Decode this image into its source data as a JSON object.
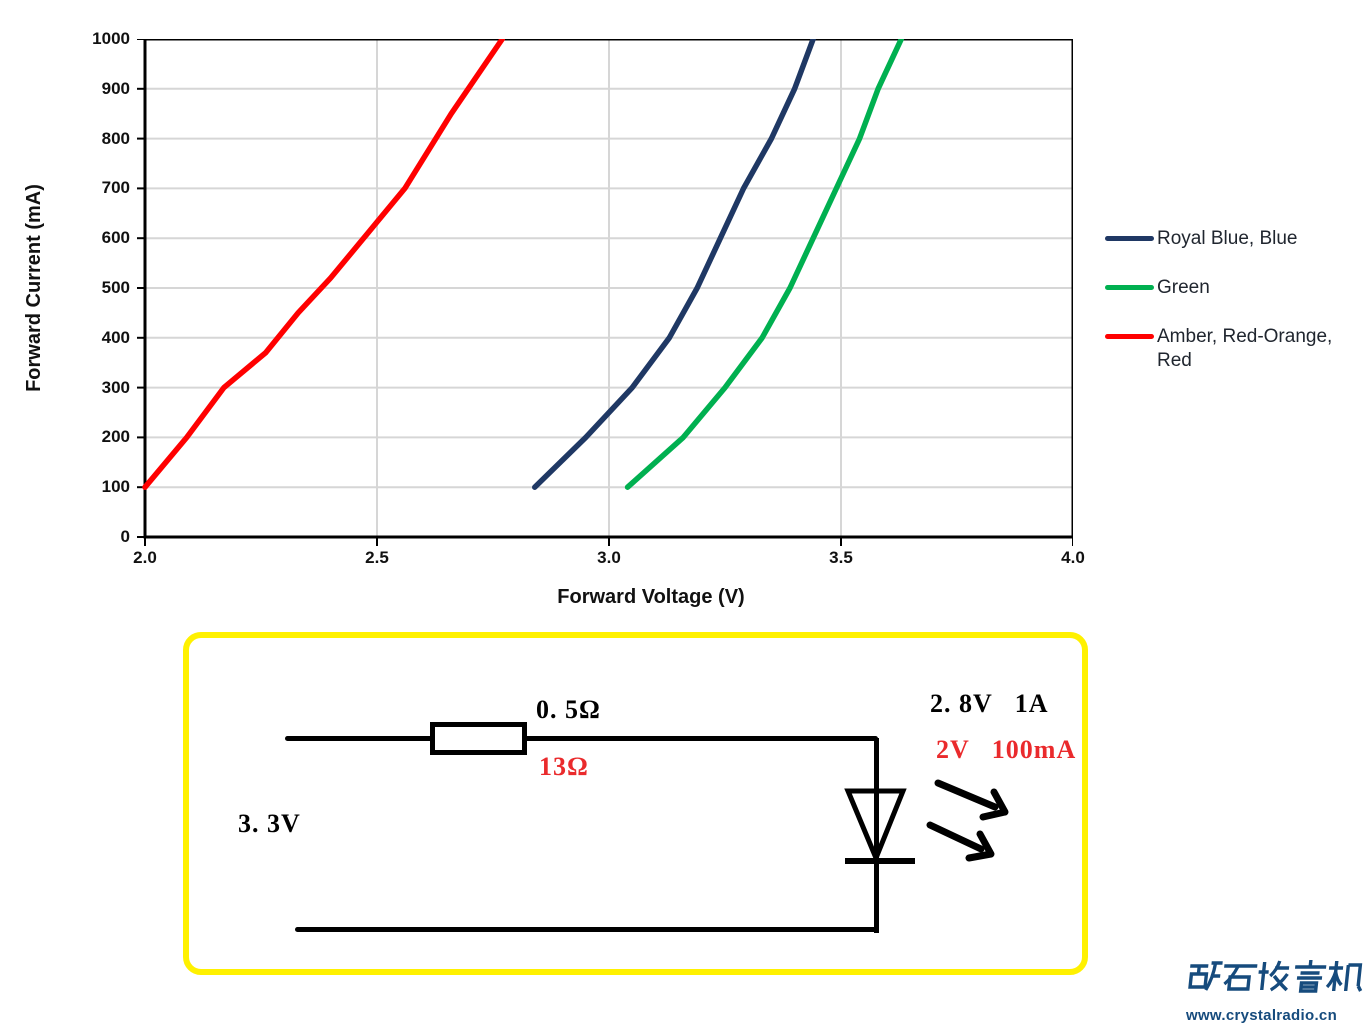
{
  "chart_data": {
    "type": "line",
    "title": "",
    "xlabel": "Forward Voltage (V)",
    "ylabel": "Forward Current (mA)",
    "xlim": [
      2.0,
      4.0
    ],
    "ylim": [
      0,
      1000
    ],
    "x_ticks": [
      2.0,
      2.5,
      3.0,
      3.5,
      4.0
    ],
    "x_tick_labels": [
      "2.0",
      "2.5",
      "3.0",
      "3.5",
      "4.0"
    ],
    "y_tick_step": 100,
    "y_tick_labels": [
      "0",
      "100",
      "200",
      "300",
      "400",
      "500",
      "600",
      "700",
      "800",
      "900",
      "1000"
    ],
    "grid": true,
    "grid_color": "#D6D6D6",
    "axis_color": "#000000",
    "legend_position": "right",
    "series": [
      {
        "name": "Royal Blue, Blue",
        "color": "#1F3864",
        "x": [
          2.84,
          2.95,
          3.05,
          3.13,
          3.19,
          3.24,
          3.29,
          3.35,
          3.4,
          3.44
        ],
        "y": [
          100,
          200,
          300,
          400,
          500,
          600,
          700,
          800,
          900,
          1000
        ]
      },
      {
        "name": "Green",
        "color": "#00B050",
        "x": [
          3.04,
          3.16,
          3.25,
          3.33,
          3.39,
          3.44,
          3.49,
          3.54,
          3.58,
          3.63
        ],
        "y": [
          100,
          200,
          300,
          400,
          500,
          600,
          700,
          800,
          900,
          1000
        ]
      },
      {
        "name": "Amber, Red-Orange, Red",
        "color": "#FF0000",
        "x": [
          2.0,
          2.09,
          2.17,
          2.26,
          2.33,
          2.4,
          2.48,
          2.56,
          2.66,
          2.77
        ],
        "y": [
          100,
          200,
          300,
          370,
          450,
          520,
          610,
          700,
          850,
          1000
        ]
      }
    ]
  },
  "circuit": {
    "supply_voltage_label": "3. 3V",
    "resistor_value_label": "0. 5Ω",
    "resistor_value_label_red": "13Ω",
    "led_spec_label": "2. 8V   1A",
    "led_spec_label_red": "2V   100mA",
    "border_color": "#FFF100",
    "red_annotation_color": "#EA2A2C"
  },
  "watermark": {
    "logo_text": "矿石收音机",
    "site_url": "www.crystalradio.cn",
    "color": "#164B7D"
  }
}
